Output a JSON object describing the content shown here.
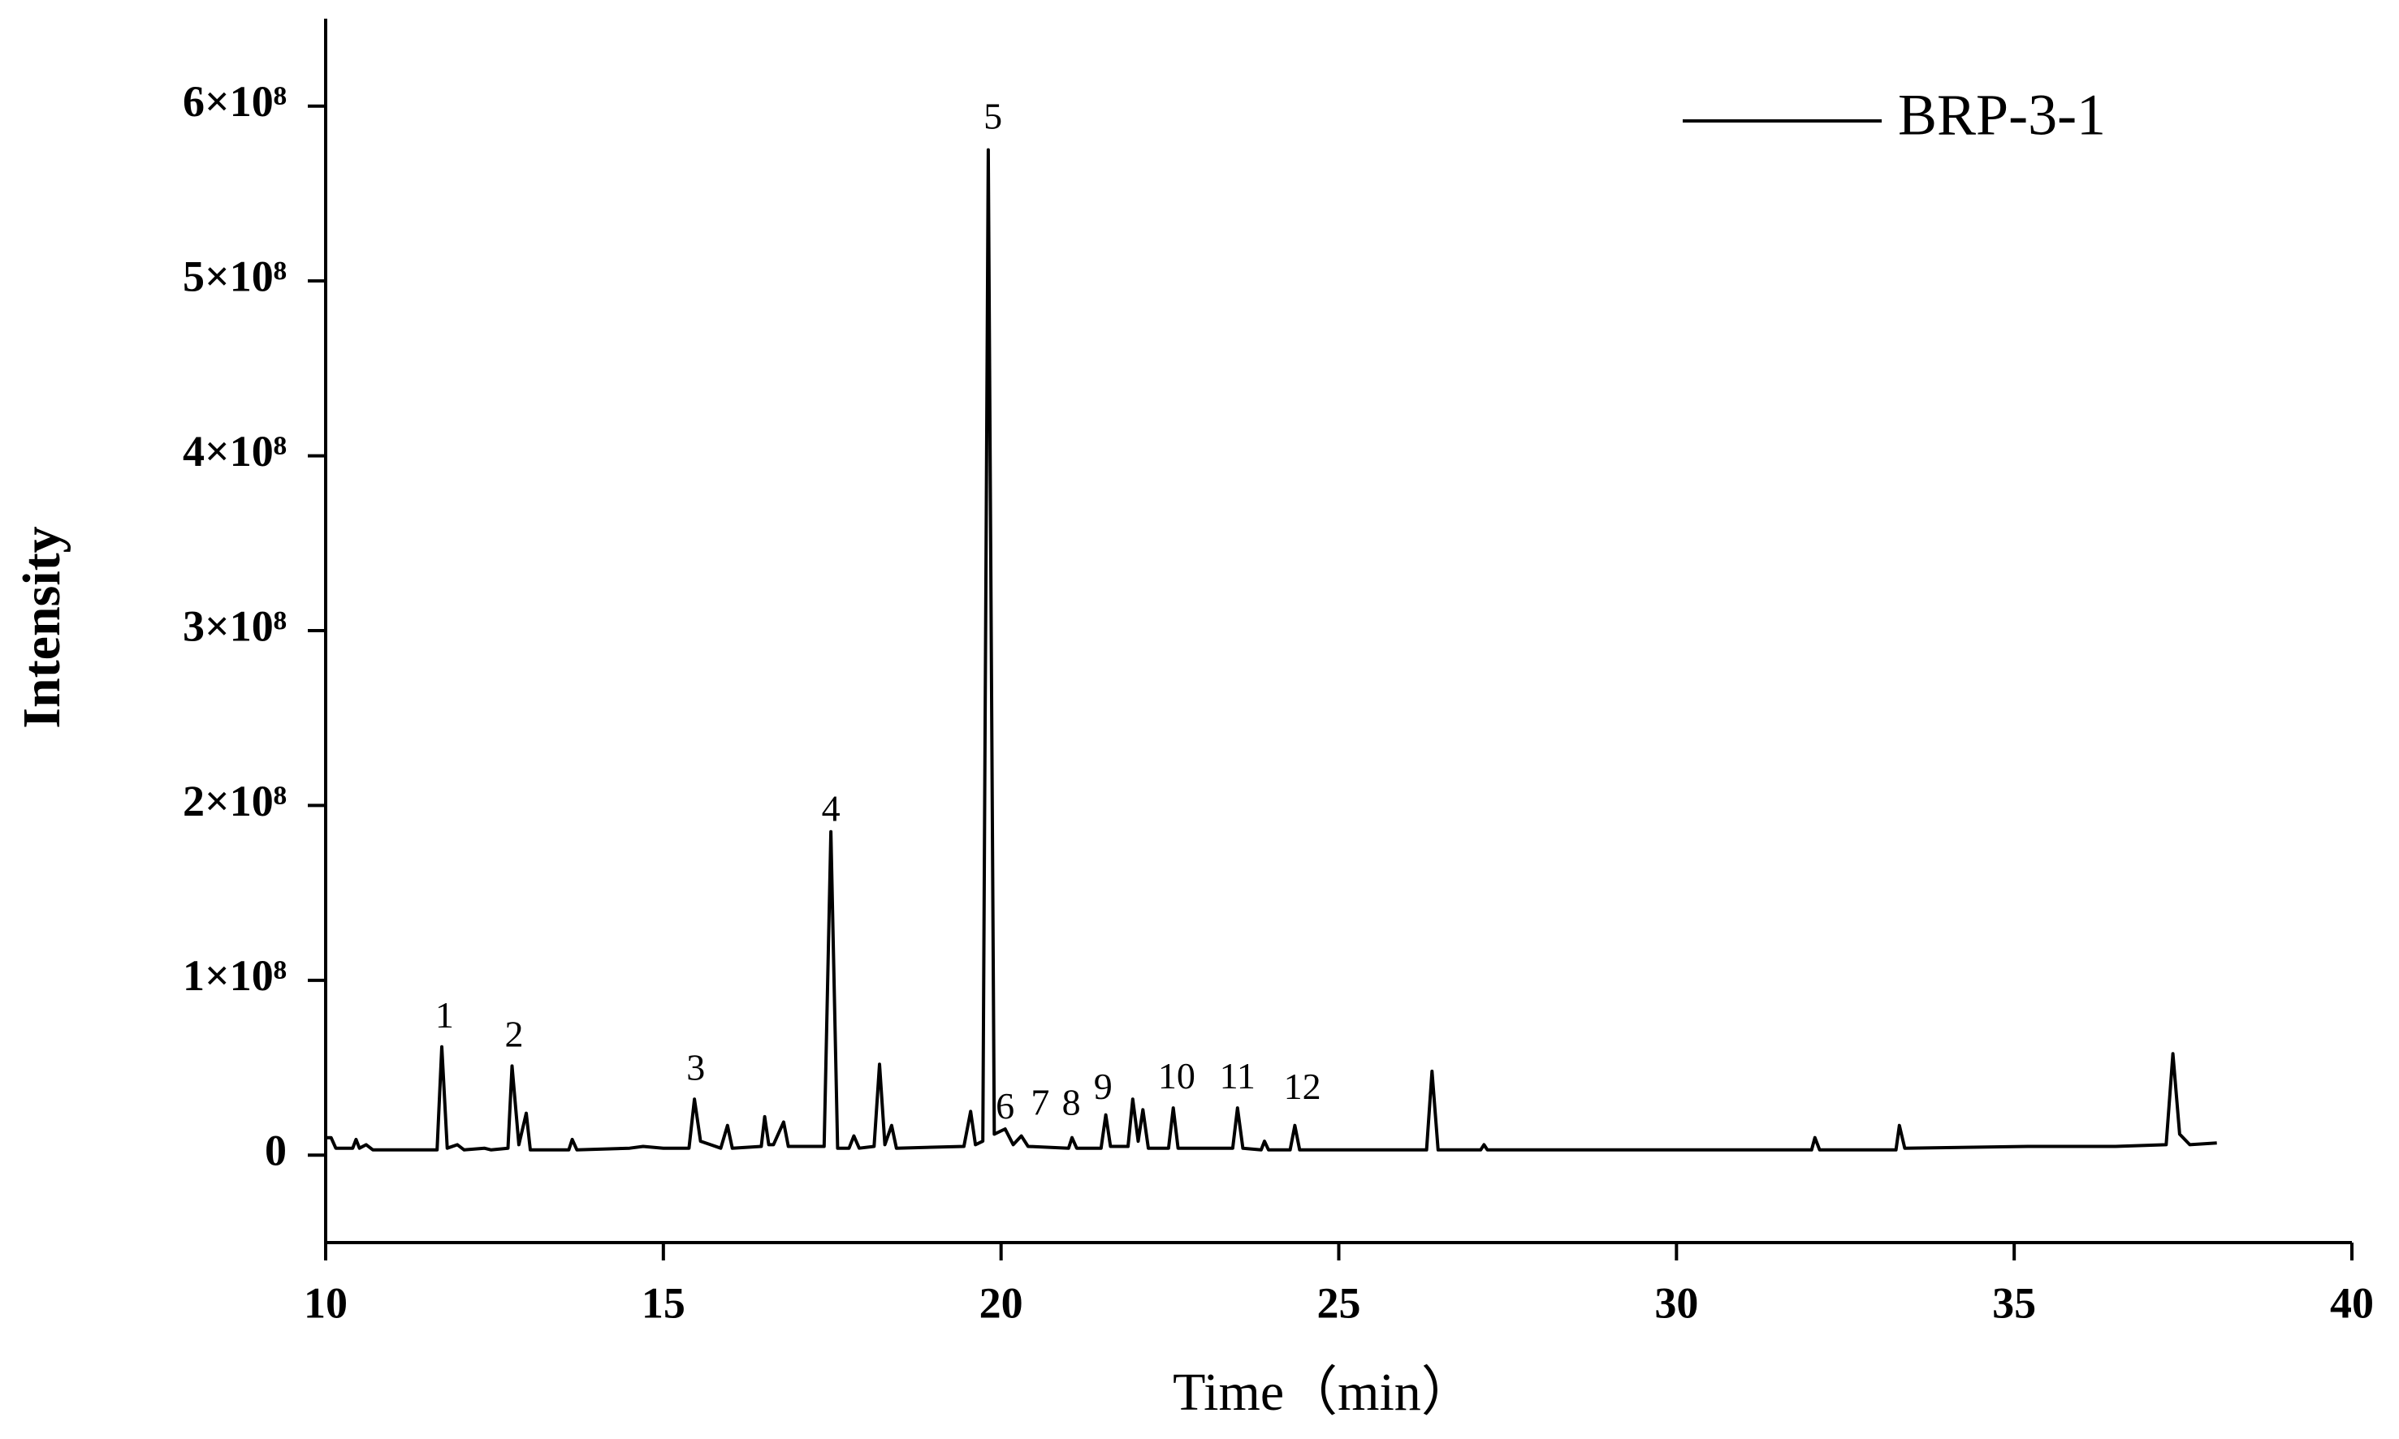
{
  "chart_data": {
    "type": "line",
    "x_label": "Time（min）",
    "y_label": "Intensity",
    "xlim": [
      10,
      40
    ],
    "xticks": [
      10,
      15,
      20,
      25,
      30,
      35,
      40
    ],
    "ylim": [
      -50000000.0,
      650000000.0
    ],
    "yticks": [
      0,
      {
        "value": 100000000.0,
        "label": "1×10⁸"
      },
      {
        "value": 200000000.0,
        "label": "2×10⁸"
      },
      {
        "value": 300000000.0,
        "label": "3×10⁸"
      },
      {
        "value": 400000000.0,
        "label": "4×10⁸"
      },
      {
        "value": 500000000.0,
        "label": "5×10⁸"
      },
      {
        "value": 600000000.0,
        "label": "6×10⁸"
      }
    ],
    "legend": "upper right",
    "grid": false,
    "x": [
      10.0,
      10.08,
      10.15,
      10.4,
      10.45,
      10.5,
      10.6,
      10.7,
      11.65,
      11.72,
      11.8,
      11.95,
      12.05,
      12.35,
      12.45,
      12.7,
      12.76,
      12.86,
      12.97,
      13.03,
      13.6,
      13.65,
      13.72,
      14.5,
      14.7,
      15.0,
      15.38,
      15.46,
      15.55,
      15.7,
      15.85,
      15.95,
      16.02,
      16.45,
      16.5,
      16.56,
      16.63,
      16.78,
      16.85,
      17.38,
      17.48,
      17.58,
      17.75,
      17.82,
      17.9,
      18.12,
      18.2,
      18.28,
      18.38,
      18.45,
      19.45,
      19.55,
      19.62,
      19.73,
      19.81,
      19.9,
      20.06,
      20.18,
      20.3,
      20.4,
      21.0,
      21.05,
      21.12,
      21.48,
      21.55,
      21.62,
      21.88,
      21.95,
      22.03,
      22.1,
      22.18,
      22.48,
      22.55,
      22.62,
      23.43,
      23.5,
      23.58,
      23.85,
      23.9,
      23.96,
      24.28,
      24.35,
      24.42,
      26.3,
      26.38,
      26.47,
      27.1,
      27.15,
      27.2,
      32.0,
      32.05,
      32.12,
      33.25,
      33.3,
      33.38,
      35.2,
      36.5,
      37.25,
      37.35,
      37.45,
      37.6,
      38.0
    ],
    "series": [
      {
        "name": "BRP-3-1",
        "color": "#000000",
        "values": [
          10000000.0,
          10000000.0,
          4000000.0,
          4000000.0,
          9000000.0,
          4000000.0,
          6000000.0,
          3000000.0,
          3000000.0,
          62000000.0,
          4000000.0,
          6000000.0,
          3000000.0,
          4000000.0,
          3000000.0,
          4000000.0,
          51000000.0,
          6000000.0,
          24000000.0,
          3000000.0,
          3000000.0,
          9000000.0,
          3000000.0,
          4000000.0,
          5000000.0,
          4000000.0,
          4000000.0,
          32000000.0,
          8000000.0,
          6000000.0,
          4000000.0,
          17000000.0,
          4000000.0,
          5000000.0,
          22000000.0,
          6000000.0,
          6000000.0,
          19000000.0,
          5000000.0,
          5000000.0,
          185000000.0,
          4000000.0,
          4000000.0,
          11000000.0,
          4000000.0,
          5000000.0,
          52000000.0,
          6000000.0,
          17000000.0,
          4000000.0,
          5000000.0,
          25000000.0,
          6000000.0,
          8000000.0,
          575000000.0,
          12000000.0,
          15000000.0,
          6000000.0,
          11000000.0,
          5000000.0,
          4000000.0,
          10000000.0,
          4000000.0,
          4000000.0,
          23000000.0,
          5000000.0,
          5000000.0,
          32000000.0,
          8000000.0,
          26000000.0,
          4000000.0,
          4000000.0,
          27000000.0,
          4000000.0,
          4000000.0,
          27000000.0,
          4000000.0,
          3000000.0,
          8000000.0,
          3000000.0,
          3000000.0,
          17000000.0,
          3000000.0,
          3000000.0,
          48000000.0,
          3000000.0,
          3000000.0,
          6000000.0,
          3000000.0,
          3000000.0,
          10000000.0,
          3000000.0,
          3000000.0,
          17000000.0,
          4000000.0,
          5000000.0,
          5000000.0,
          6000000.0,
          58000000.0,
          12000000.0,
          6000000.0,
          7000000.0
        ]
      }
    ],
    "annotations": [
      {
        "text": "1",
        "x": 11.76,
        "y": 78000000.0
      },
      {
        "text": "2",
        "x": 12.79,
        "y": 67000000.0
      },
      {
        "text": "3",
        "x": 15.48,
        "y": 48000000.0
      },
      {
        "text": "4",
        "x": 17.48,
        "y": 196000000.0
      },
      {
        "text": "5",
        "x": 19.88,
        "y": 592000000.0
      },
      {
        "text": "6",
        "x": 20.06,
        "y": 26000000.0
      },
      {
        "text": "7",
        "x": 20.58,
        "y": 28000000.0
      },
      {
        "text": "8",
        "x": 21.04,
        "y": 28000000.0
      },
      {
        "text": "9",
        "x": 21.51,
        "y": 37000000.0
      },
      {
        "text": "10",
        "x": 22.6,
        "y": 43000000.0
      },
      {
        "text": "11",
        "x": 23.5,
        "y": 43000000.0
      },
      {
        "text": "12",
        "x": 24.46,
        "y": 37000000.0
      }
    ]
  }
}
